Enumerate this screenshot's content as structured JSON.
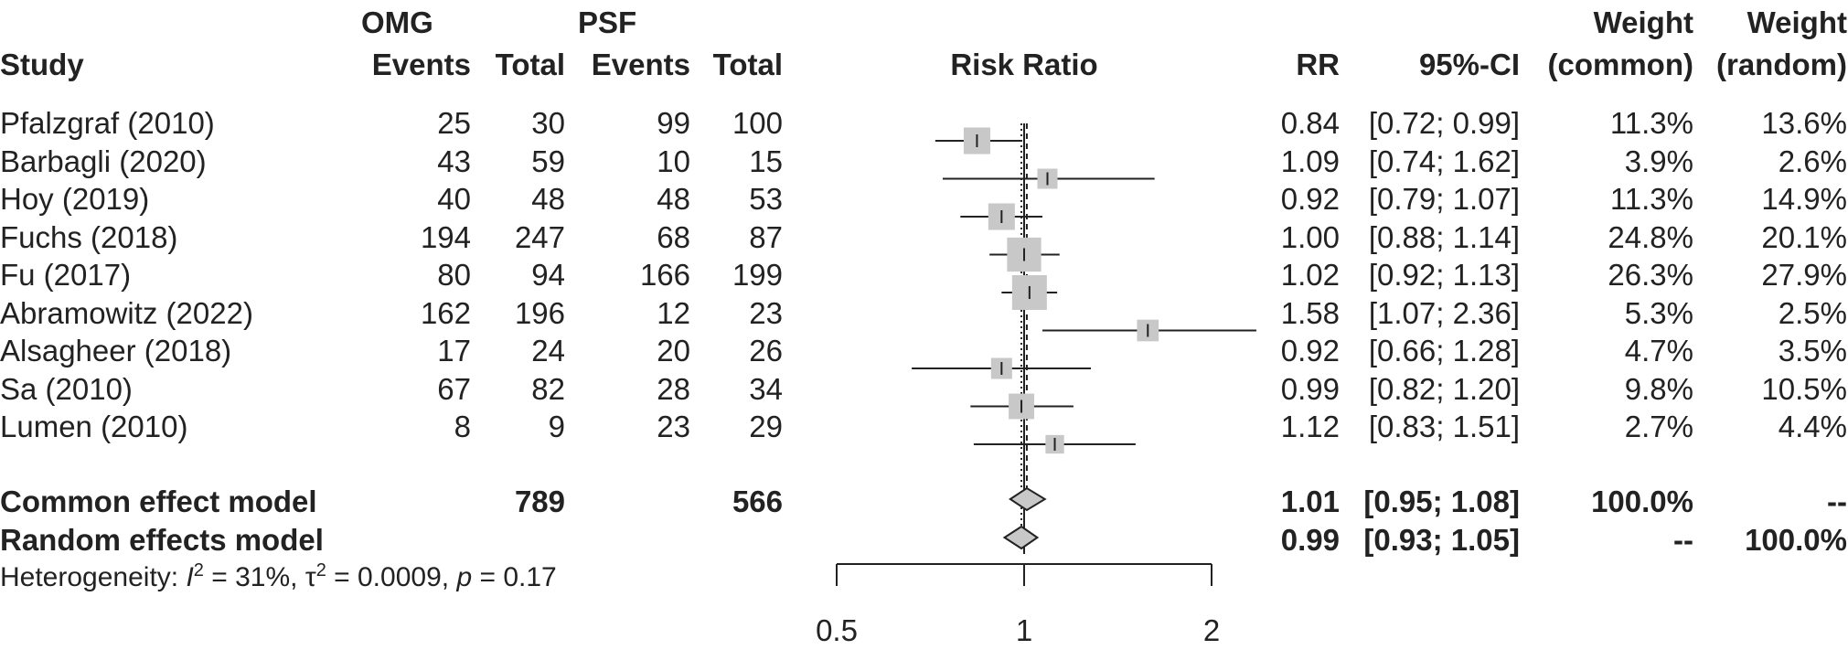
{
  "chart_data": {
    "type": "forest",
    "headers": {
      "study": "Study",
      "group1": "OMG",
      "group2": "PSF",
      "events": "Events",
      "total": "Total",
      "risk_ratio": "Risk Ratio",
      "rr": "RR",
      "ci": "95%-CI",
      "weight": "Weight",
      "common": "(common)",
      "random": "(random)"
    },
    "studies": [
      {
        "study": "Pfalzgraf (2010)",
        "e1": "25",
        "t1": "30",
        "e2": "99",
        "t2": "100",
        "rr": 0.84,
        "lo": 0.72,
        "hi": 0.99,
        "rr_text": "0.84",
        "ci_text": "[0.72; 0.99]",
        "w_common": "11.3%",
        "w_random": "13.6%",
        "w": 11.3
      },
      {
        "study": "Barbagli (2020)",
        "e1": "43",
        "t1": "59",
        "e2": "10",
        "t2": "15",
        "rr": 1.09,
        "lo": 0.74,
        "hi": 1.62,
        "rr_text": "1.09",
        "ci_text": "[0.74; 1.62]",
        "w_common": "3.9%",
        "w_random": "2.6%",
        "w": 3.9
      },
      {
        "study": "Hoy (2019)",
        "e1": "40",
        "t1": "48",
        "e2": "48",
        "t2": "53",
        "rr": 0.92,
        "lo": 0.79,
        "hi": 1.07,
        "rr_text": "0.92",
        "ci_text": "[0.79; 1.07]",
        "w_common": "11.3%",
        "w_random": "14.9%",
        "w": 11.3
      },
      {
        "study": "Fuchs (2018)",
        "e1": "194",
        "t1": "247",
        "e2": "68",
        "t2": "87",
        "rr": 1.0,
        "lo": 0.88,
        "hi": 1.14,
        "rr_text": "1.00",
        "ci_text": "[0.88; 1.14]",
        "w_common": "24.8%",
        "w_random": "20.1%",
        "w": 24.8
      },
      {
        "study": "Fu (2017)",
        "e1": "80",
        "t1": "94",
        "e2": "166",
        "t2": "199",
        "rr": 1.02,
        "lo": 0.92,
        "hi": 1.13,
        "rr_text": "1.02",
        "ci_text": "[0.92; 1.13]",
        "w_common": "26.3%",
        "w_random": "27.9%",
        "w": 26.3
      },
      {
        "study": "Abramowitz (2022)",
        "e1": "162",
        "t1": "196",
        "e2": "12",
        "t2": "23",
        "rr": 1.58,
        "lo": 1.07,
        "hi": 2.36,
        "rr_text": "1.58",
        "ci_text": "[1.07; 2.36]",
        "w_common": "5.3%",
        "w_random": "2.5%",
        "w": 5.3
      },
      {
        "study": "Alsagheer (2018)",
        "e1": "17",
        "t1": "24",
        "e2": "20",
        "t2": "26",
        "rr": 0.92,
        "lo": 0.66,
        "hi": 1.28,
        "rr_text": "0.92",
        "ci_text": "[0.66; 1.28]",
        "w_common": "4.7%",
        "w_random": "3.5%",
        "w": 4.7
      },
      {
        "study": "Sa (2010)",
        "e1": "67",
        "t1": "82",
        "e2": "28",
        "t2": "34",
        "rr": 0.99,
        "lo": 0.82,
        "hi": 1.2,
        "rr_text": "0.99",
        "ci_text": "[0.82; 1.20]",
        "w_common": "9.8%",
        "w_random": "10.5%",
        "w": 9.8
      },
      {
        "study": "Lumen (2010)",
        "e1": "8",
        "t1": "9",
        "e2": "23",
        "t2": "29",
        "rr": 1.12,
        "lo": 0.83,
        "hi": 1.51,
        "rr_text": "1.12",
        "ci_text": "[0.83; 1.51]",
        "w_common": "2.7%",
        "w_random": "4.4%",
        "w": 2.7
      }
    ],
    "common": {
      "label": "Common effect model",
      "t1": "789",
      "t2": "566",
      "rr": 1.01,
      "lo": 0.95,
      "hi": 1.08,
      "rr_text": "1.01",
      "ci_text": "[0.95; 1.08]",
      "w_common": "100.0%",
      "w_random": "--"
    },
    "random": {
      "label": "Random effects model",
      "rr": 0.99,
      "lo": 0.93,
      "hi": 1.05,
      "rr_text": "0.99",
      "ci_text": "[0.93; 1.05]",
      "w_common": "--",
      "w_random": "100.0%"
    },
    "heterogeneity": {
      "prefix": "Heterogeneity: ",
      "I": "I",
      "I_sup": "2",
      "I_val": " = 31%, ",
      "tau": "τ",
      "tau_sup": "2",
      "tau_val": " = 0.0009, ",
      "p": "p",
      "p_val": " = 0.17"
    },
    "axis": {
      "scale": "log",
      "ticks": [
        0.5,
        1,
        2
      ],
      "tick_labels": [
        "0.5",
        "1",
        "2"
      ],
      "xlim": [
        0.5,
        2
      ]
    }
  }
}
